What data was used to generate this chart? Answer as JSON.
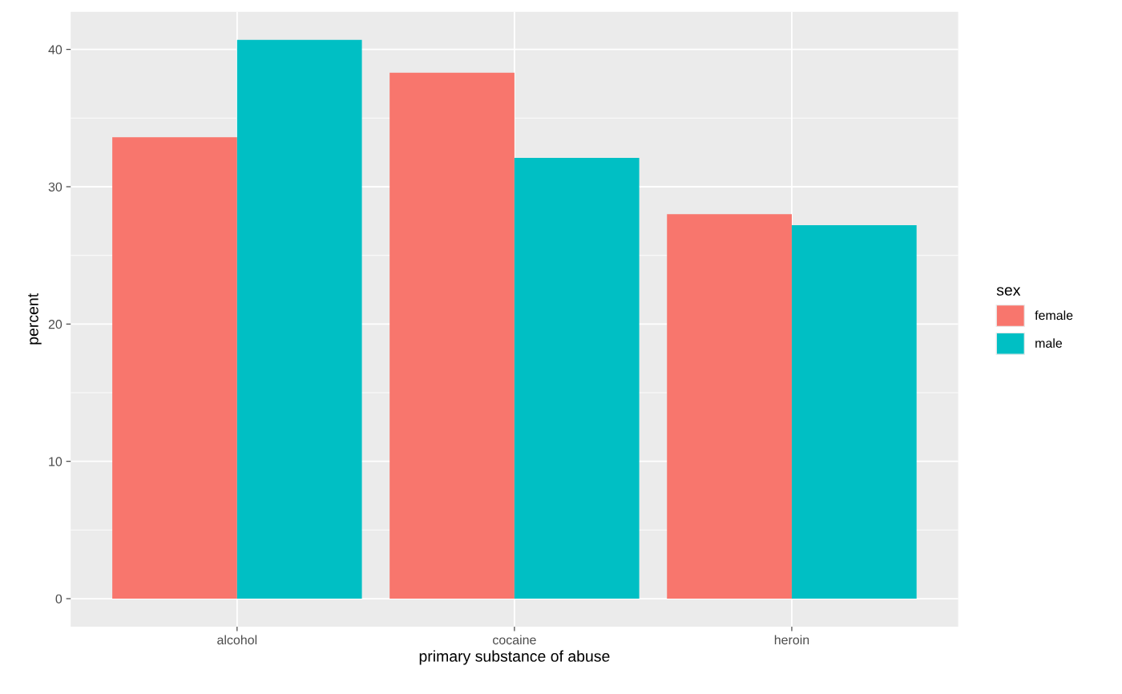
{
  "chart_data": {
    "type": "bar",
    "xlabel": "primary substance of abuse",
    "ylabel": "percent",
    "legend_title": "sex",
    "categories": [
      "alcohol",
      "cocaine",
      "heroin"
    ],
    "series": [
      {
        "name": "female",
        "color": "#f8766d",
        "values": [
          33.6,
          38.3,
          28.0
        ]
      },
      {
        "name": "male",
        "color": "#00bfc4",
        "values": [
          40.7,
          32.1,
          27.2
        ]
      }
    ],
    "ylim": [
      -2.04,
      42.74
    ],
    "yticks": [
      0,
      10,
      20,
      30,
      40
    ],
    "grid": true,
    "legend": "right"
  }
}
